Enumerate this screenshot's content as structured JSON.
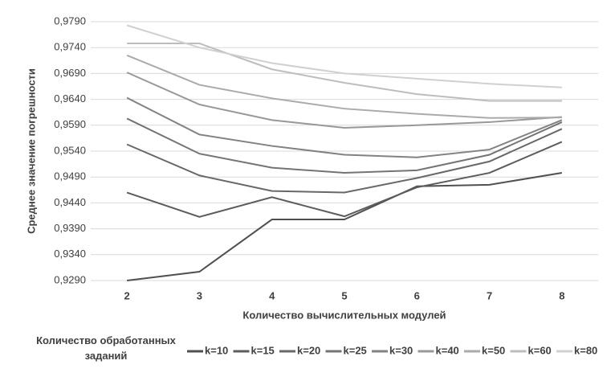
{
  "chart_data": {
    "type": "line",
    "x_label": "Количество вычислительных модулей",
    "y_label": "Среднее значение погрешности",
    "legend_title": "Количество обработанных заданий",
    "categories": [
      "2",
      "3",
      "4",
      "5",
      "6",
      "7",
      "8"
    ],
    "ylim": [
      0.929,
      0.979
    ],
    "yticks": [
      {
        "value": 0.929,
        "label": "0,9290"
      },
      {
        "value": 0.934,
        "label": "0,9340"
      },
      {
        "value": 0.939,
        "label": "0,9390"
      },
      {
        "value": 0.944,
        "label": "0,9440"
      },
      {
        "value": 0.949,
        "label": "0,9490"
      },
      {
        "value": 0.954,
        "label": "0,9540"
      },
      {
        "value": 0.959,
        "label": "0,9590"
      },
      {
        "value": 0.964,
        "label": "0,9640"
      },
      {
        "value": 0.969,
        "label": "0,9690"
      },
      {
        "value": 0.974,
        "label": "0,9740"
      },
      {
        "value": 0.979,
        "label": "0,9790"
      }
    ],
    "grid": true,
    "series": [
      {
        "name": "k=10",
        "color": "#505050",
        "values": [
          0.929,
          0.9307,
          0.9408,
          0.9408,
          0.9472,
          0.9475,
          0.9498
        ]
      },
      {
        "name": "k=15",
        "color": "#5c5c5c",
        "values": [
          0.946,
          0.9413,
          0.9451,
          0.9414,
          0.947,
          0.9498,
          0.9558
        ]
      },
      {
        "name": "k=20",
        "color": "#686868",
        "values": [
          0.9553,
          0.9493,
          0.9463,
          0.946,
          0.9488,
          0.952,
          0.9583
        ]
      },
      {
        "name": "k=25",
        "color": "#747474",
        "values": [
          0.9603,
          0.9535,
          0.9508,
          0.9498,
          0.9503,
          0.9533,
          0.9596
        ]
      },
      {
        "name": "k=30",
        "color": "#828282",
        "values": [
          0.9643,
          0.9572,
          0.955,
          0.9533,
          0.9528,
          0.9543,
          0.96
        ]
      },
      {
        "name": "k=40",
        "color": "#989898",
        "values": [
          0.9692,
          0.963,
          0.96,
          0.9585,
          0.959,
          0.9596,
          0.9606
        ]
      },
      {
        "name": "k=50",
        "color": "#aaaaaa",
        "values": [
          0.9725,
          0.9668,
          0.9642,
          0.9622,
          0.9612,
          0.9604,
          0.9605
        ]
      },
      {
        "name": "k=60",
        "color": "#bdbdbd",
        "values": [
          0.9748,
          0.9748,
          0.9698,
          0.9672,
          0.965,
          0.9637,
          0.9637
        ]
      },
      {
        "name": "k=80",
        "color": "#d0d0d0",
        "values": [
          0.9783,
          0.974,
          0.971,
          0.969,
          0.968,
          0.967,
          0.9663
        ]
      }
    ]
  }
}
